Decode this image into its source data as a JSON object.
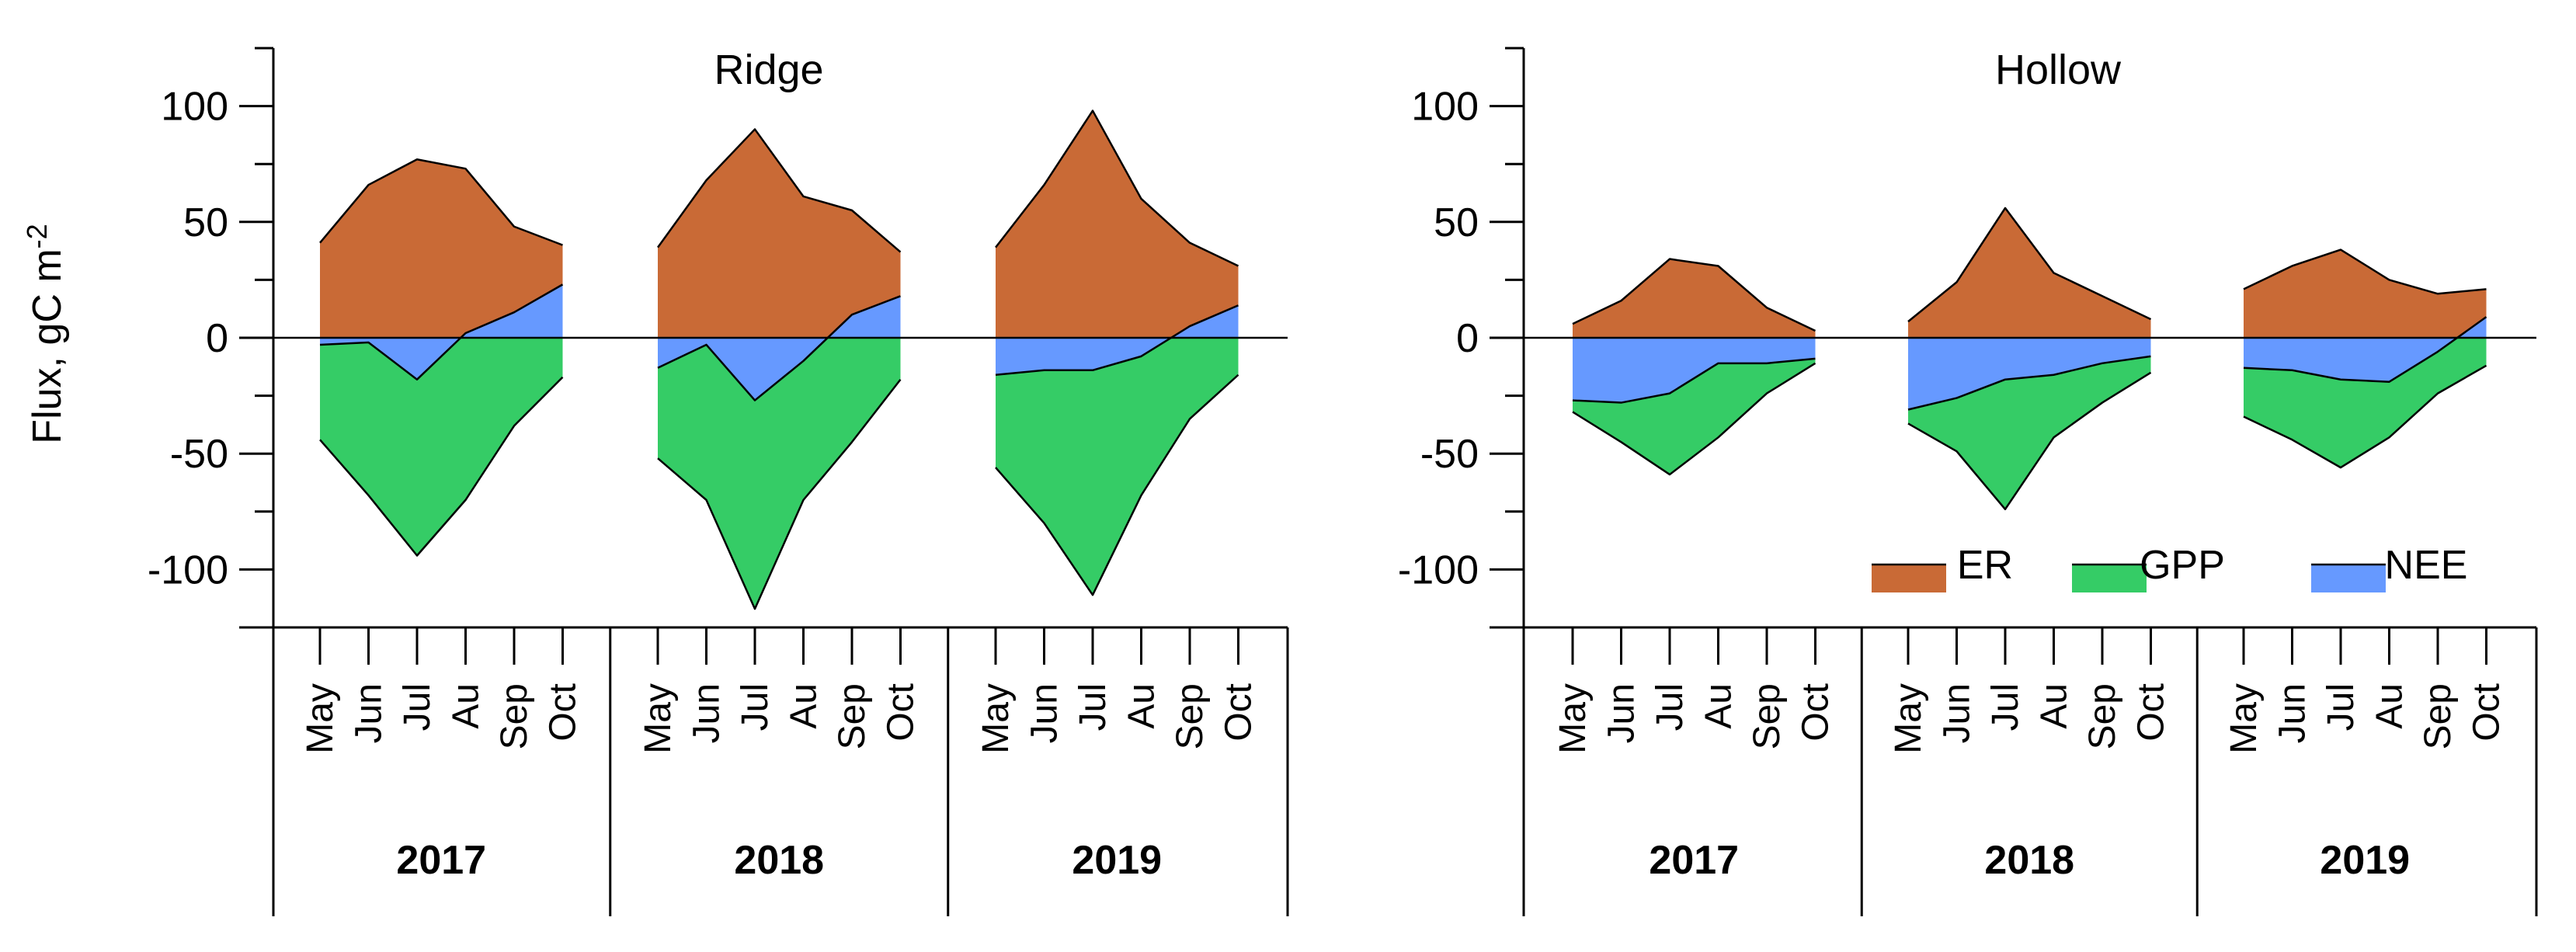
{
  "colors": {
    "ER": "#C96A36",
    "GPP": "#35CC66",
    "NEE": "#6699FF"
  },
  "y_axis_title": "Flux, gC m",
  "y_axis_title_sup": "-2",
  "chart_data": [
    {
      "type": "area",
      "title": "Ridge",
      "ylabel": "Flux, gC m-2",
      "ylim": [
        -125,
        125
      ],
      "yticks": [
        100,
        50,
        0,
        -50,
        -100
      ],
      "ytick_labels": [
        "100",
        "50",
        "0",
        "-50",
        "-100"
      ],
      "months": [
        "May",
        "Jun",
        "Jul",
        "Au",
        "Sep",
        "Oct"
      ],
      "years": [
        "2017",
        "2018",
        "2019"
      ],
      "series": [
        {
          "name": "ER",
          "values": [
            [
              41,
              66,
              77,
              73,
              48,
              40
            ],
            [
              39,
              68,
              90,
              61,
              55,
              37
            ],
            [
              39,
              66,
              98,
              60,
              41,
              31
            ]
          ]
        },
        {
          "name": "GPP",
          "values": [
            [
              -44,
              -68,
              -94,
              -70,
              -38,
              -17
            ],
            [
              -52,
              -70,
              -117,
              -70,
              -45,
              -18
            ],
            [
              -56,
              -80,
              -111,
              -68,
              -35,
              -16
            ]
          ]
        },
        {
          "name": "NEE",
          "values": [
            [
              -3,
              -2,
              -18,
              2,
              11,
              23
            ],
            [
              -13,
              -3,
              -27,
              -10,
              10,
              18
            ],
            [
              -16,
              -14,
              -14,
              -8,
              5,
              14
            ]
          ]
        }
      ]
    },
    {
      "type": "area",
      "title": "Hollow",
      "ylabel": "",
      "ylim": [
        -125,
        125
      ],
      "yticks": [
        100,
        50,
        0,
        -50,
        -100
      ],
      "ytick_labels": [
        "100",
        "50",
        "0",
        "-50",
        "-100"
      ],
      "months": [
        "May",
        "Jun",
        "Jul",
        "Au",
        "Sep",
        "Oct"
      ],
      "years": [
        "2017",
        "2018",
        "2019"
      ],
      "series": [
        {
          "name": "ER",
          "values": [
            [
              6,
              16,
              34,
              31,
              13,
              3
            ],
            [
              7,
              24,
              56,
              28,
              18,
              8
            ],
            [
              21,
              31,
              38,
              25,
              19,
              21
            ]
          ]
        },
        {
          "name": "GPP",
          "values": [
            [
              -32,
              -45,
              -59,
              -43,
              -24,
              -11
            ],
            [
              -37,
              -49,
              -74,
              -43,
              -28,
              -15
            ],
            [
              -34,
              -44,
              -56,
              -43,
              -24,
              -12
            ]
          ]
        },
        {
          "name": "NEE",
          "values": [
            [
              -27,
              -28,
              -24,
              -11,
              -11,
              -9
            ],
            [
              -31,
              -26,
              -18,
              -16,
              -11,
              -8
            ],
            [
              -13,
              -14,
              -18,
              -19,
              -6,
              9
            ]
          ]
        }
      ],
      "legend": {
        "position": "bottom-right",
        "items": [
          "ER",
          "GPP",
          "NEE"
        ]
      }
    }
  ]
}
